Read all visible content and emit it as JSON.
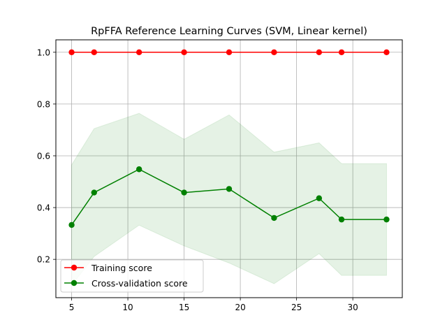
{
  "chart_data": {
    "type": "line",
    "title": "RpFFA Reference Learning Curves (SVM, Linear kernel)",
    "xlabel": "",
    "ylabel": "",
    "xlim": [
      3.6,
      34.4
    ],
    "ylim": [
      0.052,
      1.048
    ],
    "xticks": [
      5,
      10,
      15,
      20,
      25,
      30
    ],
    "yticks": [
      0.2,
      0.4,
      0.6,
      0.8,
      1.0
    ],
    "xtick_labels": [
      "5",
      "10",
      "15",
      "20",
      "25",
      "30"
    ],
    "ytick_labels": [
      "0.2",
      "0.4",
      "0.6",
      "0.8",
      "1.0"
    ],
    "grid": true,
    "legend_position": "lower-left",
    "x": [
      5,
      7,
      11,
      15,
      19,
      23,
      27,
      29,
      33
    ],
    "series": [
      {
        "name": "Training score",
        "color": "#ff0000",
        "values": [
          1.0,
          1.0,
          1.0,
          1.0,
          1.0,
          1.0,
          1.0,
          1.0,
          1.0
        ],
        "band_upper": [
          1.0,
          1.0,
          1.0,
          1.0,
          1.0,
          1.0,
          1.0,
          1.0,
          1.0
        ],
        "band_lower": [
          1.0,
          1.0,
          1.0,
          1.0,
          1.0,
          1.0,
          1.0,
          1.0,
          1.0
        ]
      },
      {
        "name": "Cross-validation score",
        "color": "#008000",
        "band_color": "#008000",
        "values": [
          0.333,
          0.458,
          0.548,
          0.458,
          0.472,
          0.36,
          0.436,
          0.354,
          0.354
        ],
        "band_upper": [
          0.565,
          0.705,
          0.764,
          0.664,
          0.758,
          0.614,
          0.65,
          0.57,
          0.57
        ],
        "band_lower": [
          0.1,
          0.211,
          0.332,
          0.252,
          0.186,
          0.106,
          0.222,
          0.138,
          0.138
        ]
      }
    ]
  }
}
